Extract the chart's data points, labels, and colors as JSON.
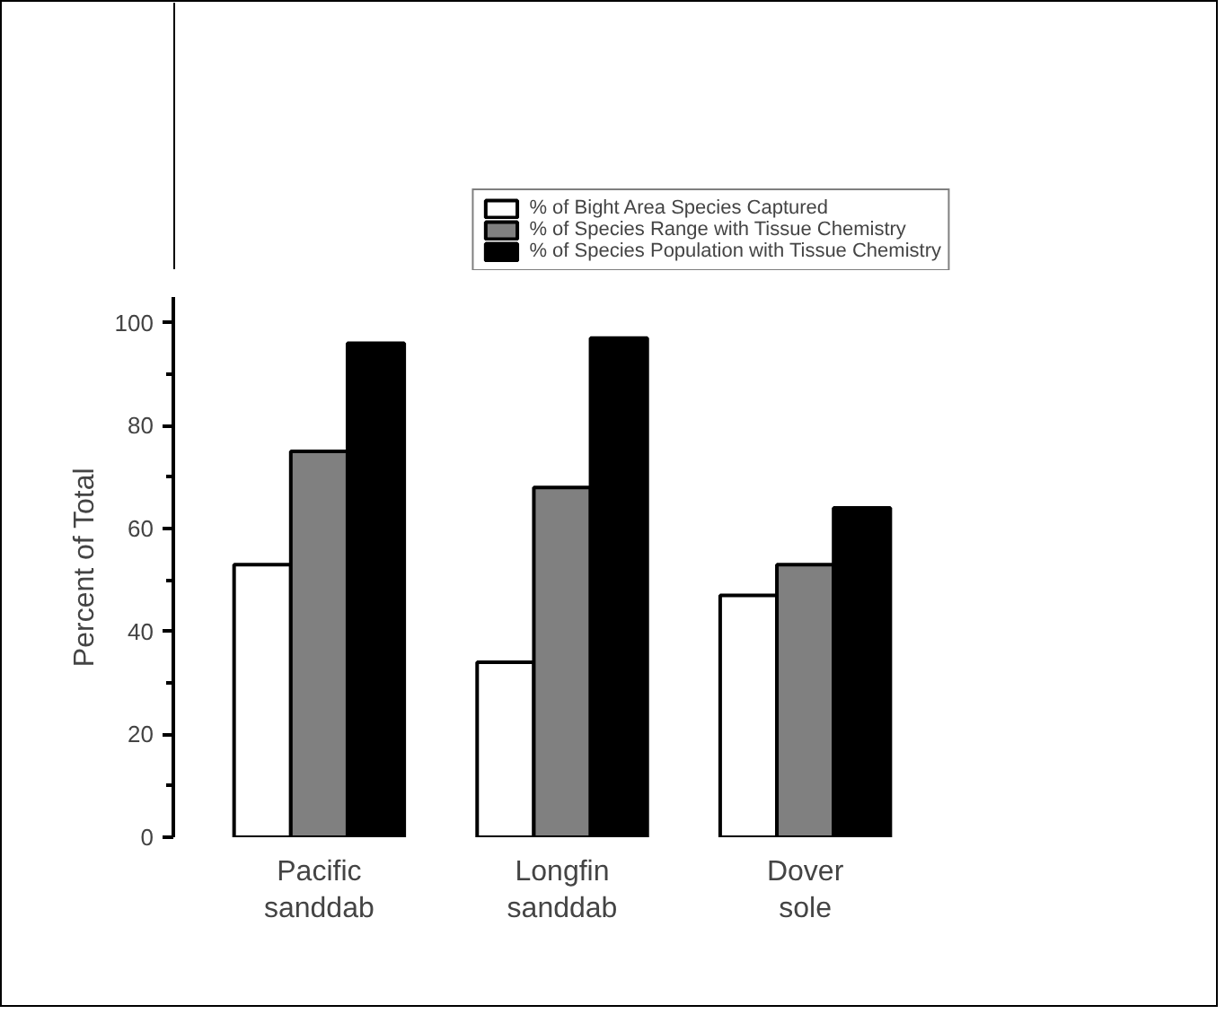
{
  "chart_data": {
    "type": "bar",
    "ylabel": "Percent of Total",
    "categories": [
      "Pacific\nsanddab",
      "Longfin\nsanddab",
      "Dover\nsole"
    ],
    "series": [
      {
        "name": "% of Bight Area Species Captured",
        "color": "#ffffff",
        "values": [
          53,
          34,
          47
        ]
      },
      {
        "name": "% of Species Range with Tissue Chemistry",
        "color": "#808080",
        "values": [
          75,
          68,
          53
        ]
      },
      {
        "name": "% of Species Population with Tissue Chemistry",
        "color": "#000000",
        "values": [
          96,
          97,
          64
        ]
      }
    ],
    "ylim": [
      0,
      105
    ],
    "yticks": [
      0,
      20,
      40,
      60,
      80,
      100
    ],
    "grid": false,
    "legend": "top right"
  }
}
